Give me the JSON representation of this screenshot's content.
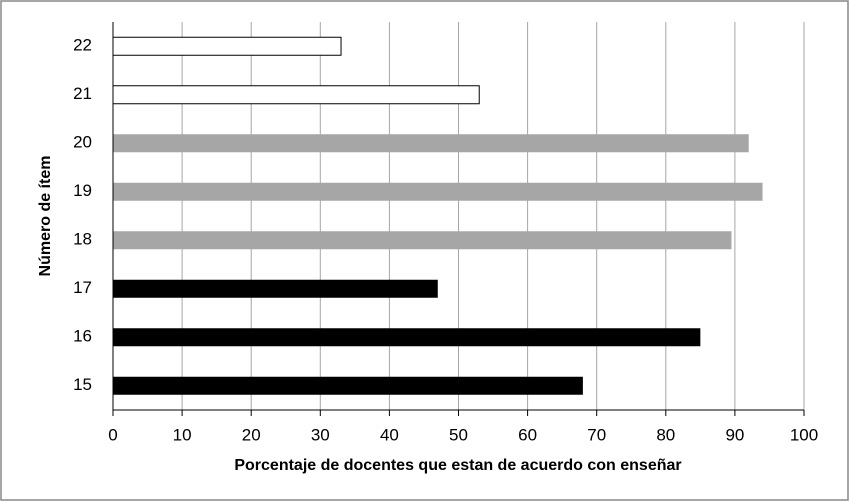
{
  "chart_data": {
    "type": "bar",
    "orientation": "horizontal",
    "x_label": "Porcentaje de docentes que estan de acuerdo con enseñar",
    "y_label": "Número de ítem",
    "categories": [
      "15",
      "16",
      "17",
      "18",
      "19",
      "20",
      "21",
      "22"
    ],
    "values": [
      68,
      85,
      47,
      89.5,
      94,
      92,
      53,
      33
    ],
    "colors": [
      "#000000",
      "#000000",
      "#000000",
      "#a6a6a6",
      "#a6a6a6",
      "#a6a6a6",
      "#ffffff",
      "#ffffff"
    ],
    "xlim": [
      0,
      100
    ],
    "xticks": [
      0,
      10,
      20,
      30,
      40,
      50,
      60,
      70,
      80,
      90,
      100
    ],
    "grid": true
  }
}
